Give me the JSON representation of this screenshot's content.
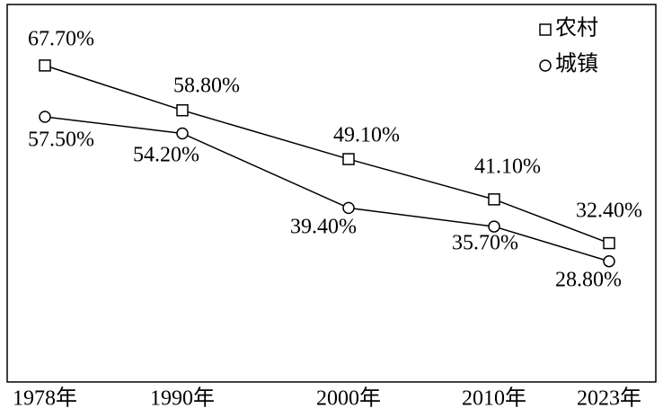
{
  "chart_data": {
    "type": "line",
    "categories": [
      "1978年",
      "1990年",
      "2000年",
      "2010年",
      "2023年"
    ],
    "series": [
      {
        "name": "农村",
        "color": "#000000",
        "marker": "square",
        "values": [
          67.7,
          58.8,
          49.1,
          41.1,
          32.4
        ],
        "value_labels": [
          "67.70%",
          "58.80%",
          "49.10%",
          "41.10%",
          "32.40%"
        ]
      },
      {
        "name": "城镇",
        "color": "#000000",
        "marker": "circle",
        "values": [
          57.5,
          54.2,
          39.4,
          35.7,
          28.8
        ],
        "value_labels": [
          "57.50%",
          "54.20%",
          "39.40%",
          "35.70%",
          "28.80%"
        ]
      }
    ],
    "legend": "upper right"
  }
}
